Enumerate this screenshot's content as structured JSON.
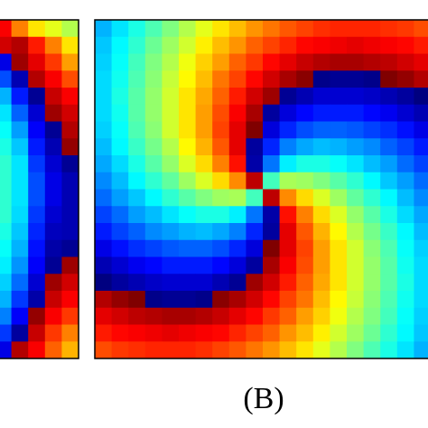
{
  "chart_data": [
    {
      "type": "heatmap",
      "colormap": "jet",
      "zlim": [
        0,
        1
      ],
      "values": [
        [
          0.88,
          0.75,
          0.65,
          0.6,
          0.55
        ],
        [
          0.92,
          0.95,
          0.85,
          0.75,
          0.65
        ],
        [
          0.1,
          0.97,
          0.9,
          0.82,
          0.72
        ],
        [
          0.2,
          0.05,
          0.95,
          0.88,
          0.8
        ],
        [
          0.3,
          0.15,
          0.02,
          0.93,
          0.88
        ],
        [
          0.35,
          0.22,
          0.08,
          0.97,
          0.92
        ],
        [
          0.38,
          0.28,
          0.12,
          0.02,
          0.95
        ],
        [
          0.4,
          0.32,
          0.15,
          0.05,
          0.98
        ],
        [
          0.42,
          0.35,
          0.18,
          0.08,
          0.02
        ],
        [
          0.42,
          0.35,
          0.2,
          0.1,
          0.05
        ],
        [
          0.42,
          0.35,
          0.2,
          0.1,
          0.05
        ],
        [
          0.42,
          0.34,
          0.18,
          0.08,
          0.05
        ],
        [
          0.4,
          0.32,
          0.16,
          0.06,
          0.05
        ],
        [
          0.38,
          0.3,
          0.14,
          0.04,
          0.02
        ],
        [
          0.36,
          0.27,
          0.12,
          0.02,
          0.97
        ],
        [
          0.33,
          0.23,
          0.08,
          0.97,
          0.92
        ],
        [
          0.3,
          0.18,
          0.04,
          0.93,
          0.88
        ],
        [
          0.25,
          0.12,
          0.98,
          0.88,
          0.82
        ],
        [
          0.18,
          0.03,
          0.93,
          0.82,
          0.75
        ],
        [
          0.1,
          0.95,
          0.88,
          0.78,
          0.7
        ]
      ]
    },
    {
      "type": "heatmap",
      "colormap": "jet",
      "zlim": [
        0,
        1
      ],
      "caption": "(B)",
      "values": [
        [
          0.3,
          0.35,
          0.4,
          0.45,
          0.5,
          0.55,
          0.6,
          0.65,
          0.69,
          0.73,
          0.76,
          0.79,
          0.81,
          0.83,
          0.84,
          0.84,
          0.84,
          0.83,
          0.82,
          0.8
        ],
        [
          0.32,
          0.37,
          0.42,
          0.48,
          0.53,
          0.58,
          0.64,
          0.69,
          0.73,
          0.78,
          0.81,
          0.84,
          0.87,
          0.88,
          0.89,
          0.9,
          0.89,
          0.88,
          0.87,
          0.85
        ],
        [
          0.33,
          0.38,
          0.44,
          0.5,
          0.55,
          0.61,
          0.67,
          0.72,
          0.78,
          0.82,
          0.87,
          0.9,
          0.93,
          0.95,
          0.96,
          0.96,
          0.95,
          0.94,
          0.92,
          0.9
        ],
        [
          0.34,
          0.39,
          0.45,
          0.51,
          0.57,
          0.63,
          0.69,
          0.76,
          0.81,
          0.87,
          0.92,
          0.96,
          0.99,
          0.01,
          0.02,
          0.02,
          0.01,
          1,
          0.98,
          0.95
        ],
        [
          0.34,
          0.4,
          0.46,
          0.52,
          0.58,
          0.65,
          0.71,
          0.78,
          0.85,
          0.92,
          0.97,
          0.02,
          0.05,
          0.08,
          0.08,
          0.08,
          0.07,
          0.05,
          0.03,
          0
        ],
        [
          0.34,
          0.39,
          0.46,
          0.52,
          0.58,
          0.65,
          0.72,
          0.8,
          0.88,
          0.96,
          0.03,
          0.09,
          0.13,
          0.15,
          0.15,
          0.15,
          0.13,
          0.11,
          0.08,
          0.05
        ],
        [
          0.33,
          0.38,
          0.45,
          0.51,
          0.58,
          0.65,
          0.72,
          0.81,
          0.9,
          1,
          0.09,
          0.16,
          0.2,
          0.22,
          0.22,
          0.21,
          0.19,
          0.17,
          0.14,
          0.1
        ],
        [
          0.31,
          0.37,
          0.43,
          0.49,
          0.55,
          0.63,
          0.7,
          0.79,
          0.9,
          0.03,
          0.16,
          0.25,
          0.29,
          0.31,
          0.3,
          0.28,
          0.26,
          0.22,
          0.19,
          0.15
        ],
        [
          0.29,
          0.34,
          0.4,
          0.46,
          0.52,
          0.59,
          0.66,
          0.75,
          0.86,
          0.04,
          0.24,
          0.36,
          0.4,
          0.4,
          0.38,
          0.35,
          0.31,
          0.28,
          0.23,
          0.19
        ],
        [
          0.26,
          0.31,
          0.37,
          0.42,
          0.47,
          0.53,
          0.59,
          0.66,
          0.74,
          0.94,
          0.44,
          0.54,
          0.53,
          0.5,
          0.46,
          0.42,
          0.37,
          0.32,
          0.28,
          0.23
        ],
        [
          0.23,
          0.28,
          0.32,
          0.37,
          0.42,
          0.46,
          0.5,
          0.53,
          0.54,
          0.44,
          0.94,
          0.74,
          0.66,
          0.59,
          0.53,
          0.47,
          0.42,
          0.37,
          0.31,
          0.26
        ],
        [
          0.19,
          0.23,
          0.28,
          0.31,
          0.35,
          0.38,
          0.4,
          0.4,
          0.36,
          0.24,
          0.04,
          0.86,
          0.75,
          0.66,
          0.59,
          0.52,
          0.46,
          0.4,
          0.34,
          0.29
        ],
        [
          0.15,
          0.19,
          0.22,
          0.26,
          0.28,
          0.3,
          0.31,
          0.29,
          0.25,
          0.16,
          0.03,
          0.9,
          0.79,
          0.7,
          0.63,
          0.55,
          0.49,
          0.43,
          0.37,
          0.31
        ],
        [
          0.1,
          0.14,
          0.17,
          0.19,
          0.21,
          0.22,
          0.22,
          0.2,
          0.16,
          0.09,
          1,
          0.9,
          0.81,
          0.72,
          0.65,
          0.58,
          0.51,
          0.45,
          0.38,
          0.33
        ],
        [
          0.05,
          0.08,
          0.11,
          0.13,
          0.15,
          0.15,
          0.15,
          0.13,
          0.09,
          0.03,
          0.96,
          0.88,
          0.8,
          0.72,
          0.65,
          0.58,
          0.52,
          0.46,
          0.39,
          0.34
        ],
        [
          0,
          0.03,
          0.05,
          0.07,
          0.08,
          0.08,
          0.08,
          0.05,
          0.02,
          0.97,
          0.92,
          0.85,
          0.78,
          0.71,
          0.65,
          0.58,
          0.52,
          0.46,
          0.4,
          0.34
        ],
        [
          0.95,
          0.98,
          1,
          0.01,
          0.02,
          0.02,
          0.01,
          0.99,
          0.96,
          0.92,
          0.87,
          0.81,
          0.76,
          0.69,
          0.63,
          0.57,
          0.51,
          0.45,
          0.39,
          0.34
        ],
        [
          0.9,
          0.92,
          0.94,
          0.95,
          0.96,
          0.96,
          0.95,
          0.93,
          0.9,
          0.87,
          0.82,
          0.78,
          0.72,
          0.67,
          0.61,
          0.55,
          0.5,
          0.44,
          0.38,
          0.33
        ],
        [
          0.85,
          0.87,
          0.88,
          0.89,
          0.9,
          0.89,
          0.88,
          0.87,
          0.84,
          0.81,
          0.78,
          0.73,
          0.69,
          0.64,
          0.58,
          0.53,
          0.48,
          0.42,
          0.37,
          0.32
        ],
        [
          0.8,
          0.82,
          0.83,
          0.84,
          0.84,
          0.84,
          0.83,
          0.81,
          0.79,
          0.76,
          0.73,
          0.69,
          0.65,
          0.6,
          0.55,
          0.5,
          0.45,
          0.4,
          0.35,
          0.3
        ]
      ]
    }
  ]
}
